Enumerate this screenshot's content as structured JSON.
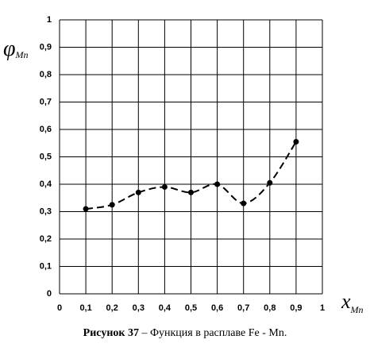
{
  "chart_data": {
    "type": "line",
    "ylabel": {
      "symbol": "φ",
      "subscript": "Mn"
    },
    "xlabel": {
      "symbol": "x",
      "subscript": "Mn"
    },
    "caption": {
      "bold": "Рисунок 37",
      "rest": "– Функция  в расплаве Fe - Mn."
    },
    "x": [
      0.1,
      0.2,
      0.3,
      0.4,
      0.5,
      0.6,
      0.7,
      0.8,
      0.9
    ],
    "series": [
      {
        "color": "#000000",
        "values": [
          0.31,
          0.325,
          0.37,
          0.39,
          0.37,
          0.4,
          0.33,
          0.405,
          0.555
        ]
      }
    ],
    "xlim": [
      0,
      1
    ],
    "ylim": [
      0,
      1
    ],
    "xticks": [
      0,
      {
        "value": 0.1,
        "label": "0,1"
      },
      {
        "value": 0.2,
        "label": "0,2"
      },
      {
        "value": 0.3,
        "label": "0,3"
      },
      {
        "value": 0.4,
        "label": "0,4"
      },
      {
        "value": 0.5,
        "label": "0,5"
      },
      {
        "value": 0.6,
        "label": "0,6"
      },
      {
        "value": 0.7,
        "label": "0,7"
      },
      {
        "value": 0.8,
        "label": "0,8"
      },
      {
        "value": 0.9,
        "label": "0,9"
      },
      1
    ],
    "yticks": [
      0,
      {
        "value": 0.1,
        "label": "0,1"
      },
      {
        "value": 0.2,
        "label": "0,2"
      },
      {
        "value": 0.3,
        "label": "0,3"
      },
      {
        "value": 0.4,
        "label": "0,4"
      },
      {
        "value": 0.5,
        "label": "0,5"
      },
      {
        "value": 0.6,
        "label": "0,6"
      },
      {
        "value": 0.7,
        "label": "0,7"
      },
      {
        "value": 0.8,
        "label": "0,8"
      },
      {
        "value": 0.9,
        "label": "0,9"
      },
      1
    ],
    "grid": true
  }
}
